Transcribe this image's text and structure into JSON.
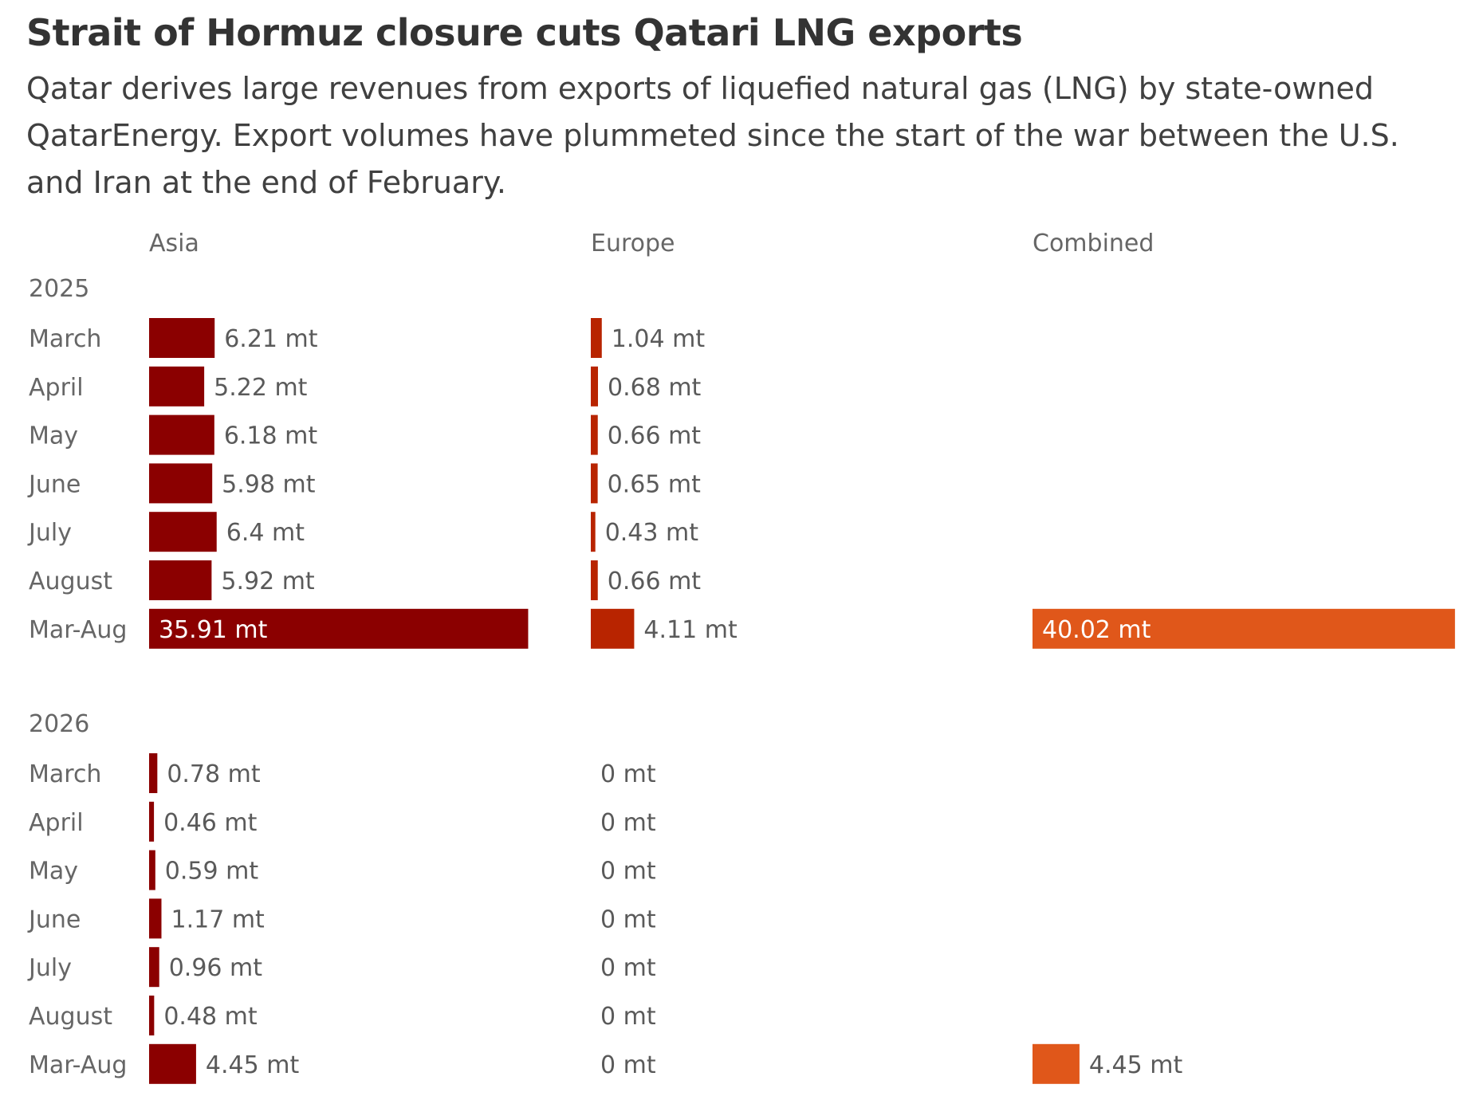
{
  "title": "Strait of Hormuz closure cuts Qatari LNG exports",
  "subtitle": "Qatar derives large revenues from exports of liquefied natural gas (LNG) by state-owned QatarEnergy. Export volumes have plummeted since the start of the war between the U.S. and Iran at the end of February.",
  "chart_data": {
    "type": "bar",
    "orientation": "horizontal",
    "unit": "mt",
    "columns": [
      "Asia",
      "Europe",
      "Combined"
    ],
    "colors": {
      "Asia": "#8b0000",
      "Europe": "#b82400",
      "Combined": "#e0571a"
    },
    "groups": [
      {
        "year": "2025",
        "rows": [
          {
            "label": "March",
            "Asia": 6.21,
            "Europe": 1.04,
            "Combined": null
          },
          {
            "label": "April",
            "Asia": 5.22,
            "Europe": 0.68,
            "Combined": null
          },
          {
            "label": "May",
            "Asia": 6.18,
            "Europe": 0.66,
            "Combined": null
          },
          {
            "label": "June",
            "Asia": 5.98,
            "Europe": 0.65,
            "Combined": null
          },
          {
            "label": "July",
            "Asia": 6.4,
            "Europe": 0.43,
            "Combined": null
          },
          {
            "label": "August",
            "Asia": 5.92,
            "Europe": 0.66,
            "Combined": null
          },
          {
            "label": "Mar-Aug",
            "Asia": 35.91,
            "Europe": 4.11,
            "Combined": 40.02
          }
        ]
      },
      {
        "year": "2026",
        "rows": [
          {
            "label": "March",
            "Asia": 0.78,
            "Europe": 0,
            "Combined": null
          },
          {
            "label": "April",
            "Asia": 0.46,
            "Europe": 0,
            "Combined": null
          },
          {
            "label": "May",
            "Asia": 0.59,
            "Europe": 0,
            "Combined": null
          },
          {
            "label": "June",
            "Asia": 1.17,
            "Europe": 0,
            "Combined": null
          },
          {
            "label": "July",
            "Asia": 0.96,
            "Europe": 0,
            "Combined": null
          },
          {
            "label": "August",
            "Asia": 0.48,
            "Europe": 0,
            "Combined": null
          },
          {
            "label": "Mar-Aug",
            "Asia": 4.45,
            "Europe": 0,
            "Combined": 4.45
          }
        ]
      }
    ]
  }
}
